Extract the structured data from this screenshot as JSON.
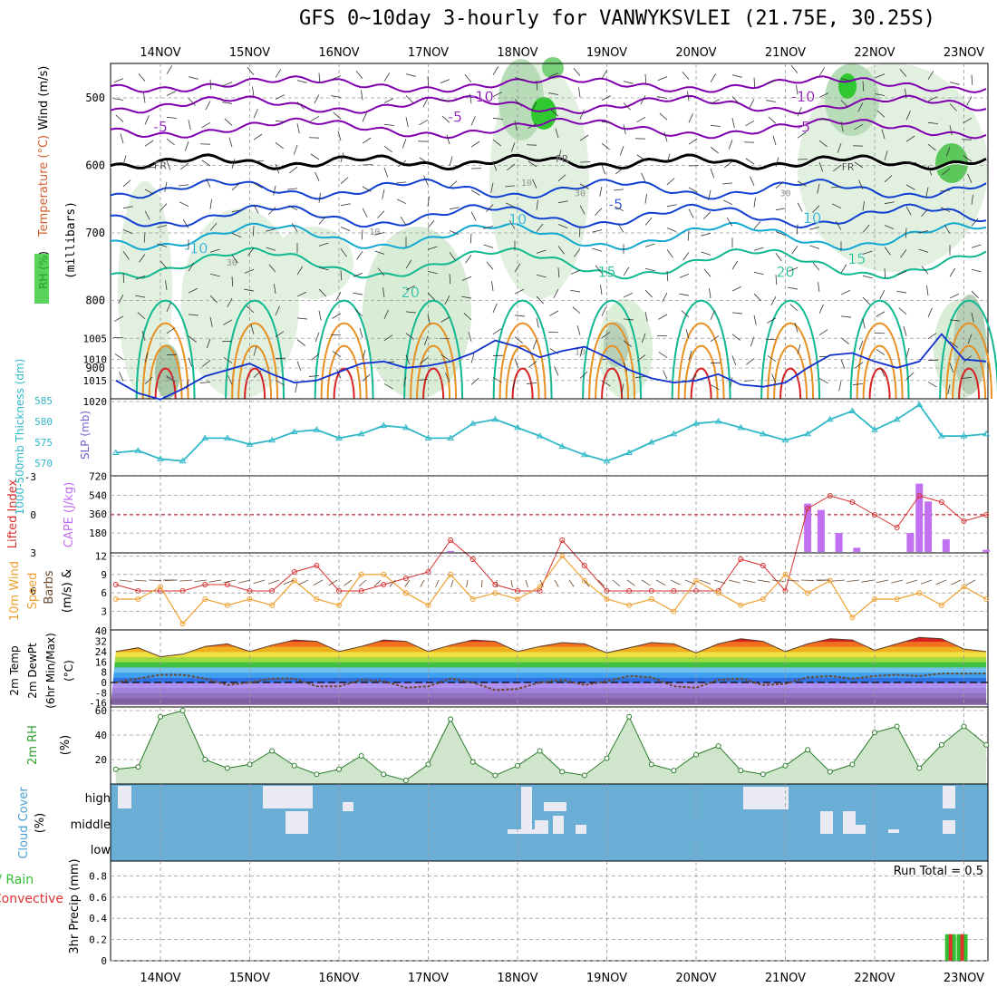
{
  "title": "GFS 0~10day 3-hourly for VANWYKSVLEI (21.75E, 30.25S)",
  "dates": [
    "14NOV",
    "15NOV",
    "16NOV",
    "17NOV",
    "18NOV",
    "19NOV",
    "20NOV",
    "21NOV",
    "22NOV",
    "23NOV"
  ],
  "colors": {
    "grid": "#9a9a9a",
    "rh_green": "#30c830",
    "temp_purple": "#8000b0",
    "temp_blue": "#1040d0",
    "temp_cyan": "#10a8d0",
    "temp_teal": "#10b890",
    "temp_orange": "#e89020",
    "temp_red": "#d82020",
    "slp": "#1030d0",
    "thickness": "#30b8c8",
    "lifted": "#d83030",
    "cape": "#c070f0",
    "wind10": "#f0a030",
    "rh2m": "#309030",
    "cloud": "#6aaed6",
    "precip_total": "#30c030",
    "precip_conv": "#e03030"
  },
  "chart_data": [
    {
      "panel": "upper-air",
      "type": "contour",
      "ylabel_parts": [
        "RH (%)",
        "Temperature (°C)",
        "Wind (m/s)",
        "(millibars)"
      ],
      "y_ticks": [
        500,
        600,
        700,
        800,
        900
      ],
      "ylim": [
        450,
        950
      ],
      "contour_labels": [
        {
          "text": "-10",
          "x": "17.6NOV",
          "p": 500,
          "color": "temp_purple"
        },
        {
          "text": "-10",
          "x": "21.2NOV",
          "p": 500,
          "color": "temp_purple"
        },
        {
          "text": "-5",
          "x": "17.3NOV",
          "p": 530,
          "color": "temp_purple"
        },
        {
          "text": "-5",
          "x": "14.0NOV",
          "p": 545,
          "color": "temp_purple"
        },
        {
          "text": "-5",
          "x": "21.2NOV",
          "p": 545,
          "color": "temp_purple"
        },
        {
          "text": "FR",
          "x": "14.0NOV",
          "p": 600,
          "color": "black"
        },
        {
          "text": "FR",
          "x": "18.5NOV",
          "p": 590,
          "color": "black"
        },
        {
          "text": "FR",
          "x": "21.7NOV",
          "p": 602,
          "color": "black"
        },
        {
          "text": "-5",
          "x": "19.1NOV",
          "p": 660,
          "color": "temp_blue"
        },
        {
          "text": "10",
          "x": "18.0NOV",
          "p": 682,
          "color": "temp_cyan"
        },
        {
          "text": "10",
          "x": "21.3NOV",
          "p": 680,
          "color": "temp_cyan"
        },
        {
          "text": "-10",
          "x": "14.4NOV",
          "p": 725,
          "color": "temp_cyan"
        },
        {
          "text": "20",
          "x": "16.8NOV",
          "p": 790,
          "color": "temp_teal"
        },
        {
          "text": "15",
          "x": "19.0NOV",
          "p": 760,
          "color": "temp_teal"
        },
        {
          "text": "20",
          "x": "21.0NOV",
          "p": 760,
          "color": "temp_teal"
        },
        {
          "text": "15",
          "x": "21.8NOV",
          "p": 740,
          "color": "temp_teal"
        }
      ],
      "gray_labels": [
        {
          "text": "10",
          "x": "18.1NOV",
          "p": 625
        },
        {
          "text": "30",
          "x": "18.7NOV",
          "p": 640
        },
        {
          "text": "10",
          "x": "16.4NOV",
          "p": 697
        },
        {
          "text": "30",
          "x": "21.0NOV",
          "p": 640
        },
        {
          "text": "30",
          "x": "14.8NOV",
          "p": 743
        },
        {
          "text": "10",
          "x": "18.7NOV",
          "p": 875
        },
        {
          "text": "30",
          "x": "14.1NOV",
          "p": 915
        }
      ]
    },
    {
      "panel": "slp-thickness",
      "type": "line",
      "ylabel_left": "1000-500mb Thickness (dm)",
      "ylabel_right": "SLP (mb)",
      "left_ticks": [
        570,
        575,
        580,
        585
      ],
      "right_ticks": [
        1005,
        1010,
        1015,
        1020
      ],
      "series": [
        {
          "name": "SLP (mb)",
          "color": "slp",
          "x": [
            13.5,
            13.75,
            14.0,
            14.25,
            14.5,
            14.75,
            15.0,
            15.25,
            15.5,
            15.75,
            16.0,
            16.25,
            16.5,
            16.75,
            17.0,
            17.25,
            17.5,
            17.75,
            18.0,
            18.25,
            18.5,
            18.75,
            19.0,
            19.25,
            19.5,
            19.75,
            20.0,
            20.25,
            20.5,
            20.75,
            21.0,
            21.25,
            21.5,
            21.75,
            22.0,
            22.25,
            22.5,
            22.75,
            23.0,
            23.25
          ],
          "values": [
            1015.0,
            1018.0,
            1019.5,
            1017.0,
            1014.0,
            1012.5,
            1011.0,
            1013.5,
            1015.5,
            1015.0,
            1013.0,
            1011.0,
            1010.5,
            1012.0,
            1011.5,
            1010.5,
            1008.5,
            1005.5,
            1007.0,
            1009.5,
            1008.0,
            1007.0,
            1009.5,
            1012.5,
            1014.5,
            1015.5,
            1015.0,
            1013.5,
            1016.0,
            1016.5,
            1015.5,
            1012.0,
            1009.0,
            1008.5,
            1010.5,
            1012.0,
            1010.5,
            1004.0,
            1010.0,
            1010.5
          ]
        },
        {
          "name": "Thickness (dm)",
          "color": "thickness",
          "x": [
            13.5,
            13.75,
            14.0,
            14.25,
            14.5,
            14.75,
            15.0,
            15.25,
            15.5,
            15.75,
            16.0,
            16.25,
            16.5,
            16.75,
            17.0,
            17.25,
            17.5,
            17.75,
            18.0,
            18.25,
            18.5,
            18.75,
            19.0,
            19.25,
            19.5,
            19.75,
            20.0,
            20.25,
            20.5,
            20.75,
            21.0,
            21.25,
            21.5,
            21.75,
            22.0,
            22.25,
            22.5,
            22.75,
            23.0,
            23.25
          ],
          "values": [
            572.5,
            573.0,
            571.0,
            570.5,
            576.0,
            576.0,
            574.5,
            575.5,
            577.5,
            578.0,
            576.0,
            577.0,
            579.0,
            578.5,
            576.0,
            576.0,
            579.5,
            580.5,
            578.5,
            576.5,
            574.0,
            572.0,
            570.5,
            572.5,
            575.0,
            577.0,
            579.5,
            580.0,
            578.5,
            577.0,
            575.5,
            577.0,
            580.5,
            582.5,
            578.0,
            580.5,
            584.0,
            576.5,
            576.5,
            577.0
          ]
        }
      ]
    },
    {
      "panel": "lifted-cape",
      "type": "bar",
      "ylabel_left": "Lifted Index",
      "ylabel_right": "CAPE (J/kg)",
      "left_ticks": [
        -3,
        0,
        3,
        6
      ],
      "right_ticks": [
        180,
        360,
        540,
        720
      ],
      "lifted_index": {
        "x": [
          13.5,
          13.75,
          14.0,
          14.25,
          14.5,
          14.75,
          15.0,
          15.25,
          15.5,
          15.75,
          16.0,
          16.25,
          16.5,
          16.75,
          17.0,
          17.25,
          17.5,
          17.75,
          18.0,
          18.25,
          18.5,
          18.75,
          19.0,
          19.25,
          19.5,
          19.75,
          20.0,
          20.25,
          20.5,
          20.75,
          21.0,
          21.25,
          21.5,
          21.75,
          22.0,
          22.25,
          22.5,
          22.75,
          23.0,
          23.25
        ],
        "values": [
          5.5,
          6.0,
          6.0,
          6.0,
          5.5,
          5.5,
          6.0,
          6.0,
          4.5,
          4.0,
          6.0,
          6.0,
          5.5,
          5.0,
          4.5,
          2.0,
          3.5,
          5.5,
          6.0,
          6.0,
          2.0,
          4.0,
          6.0,
          6.0,
          6.0,
          6.0,
          6.0,
          6.0,
          3.5,
          4.0,
          6.0,
          -0.5,
          -1.5,
          -1.0,
          0.0,
          1.0,
          -1.5,
          -1.0,
          0.5,
          0.0
        ]
      },
      "cape": {
        "x": [
          17.25,
          21.25,
          21.4,
          21.6,
          21.8,
          22.4,
          22.5,
          22.6,
          22.8,
          23.25
        ],
        "values": [
          10,
          460,
          400,
          180,
          40,
          180,
          650,
          480,
          120,
          20
        ]
      }
    },
    {
      "panel": "wind10m",
      "type": "line",
      "ylabel": "10m Wind Speed (m/s) & Barbs",
      "y_ticks": [
        3,
        6,
        9,
        12
      ],
      "series": [
        {
          "name": "Speed",
          "color": "wind10",
          "x": [
            13.5,
            13.75,
            14.0,
            14.25,
            14.5,
            14.75,
            15.0,
            15.25,
            15.5,
            15.75,
            16.0,
            16.25,
            16.5,
            16.75,
            17.0,
            17.25,
            17.5,
            17.75,
            18.0,
            18.25,
            18.5,
            18.75,
            19.0,
            19.25,
            19.5,
            19.75,
            20.0,
            20.25,
            20.5,
            20.75,
            21.0,
            21.25,
            21.5,
            21.75,
            22.0,
            22.25,
            22.5,
            22.75,
            23.0,
            23.25
          ],
          "values": [
            5,
            5,
            7,
            1,
            5,
            4,
            5,
            4,
            8,
            5,
            4,
            9,
            9,
            6,
            4,
            9,
            5,
            6,
            5,
            7,
            12,
            8,
            5,
            4,
            5,
            3,
            8,
            6,
            4,
            5,
            9,
            6,
            8,
            2,
            5,
            5,
            6,
            4,
            7,
            5
          ]
        }
      ]
    },
    {
      "panel": "temp2m",
      "type": "area",
      "ylabel": "2m Temp 2m DewPt (6hr Min/Max) (°C)",
      "y_ticks": [
        -16,
        -8,
        0,
        8,
        16,
        24,
        32,
        40
      ],
      "temp": {
        "x": [
          13.5,
          13.75,
          14.0,
          14.25,
          14.5,
          14.75,
          15.0,
          15.25,
          15.5,
          15.75,
          16.0,
          16.25,
          16.5,
          16.75,
          17.0,
          17.25,
          17.5,
          17.75,
          18.0,
          18.25,
          18.5,
          18.75,
          19.0,
          19.25,
          19.5,
          19.75,
          20.0,
          20.25,
          20.5,
          20.75,
          21.0,
          21.25,
          21.5,
          21.75,
          22.0,
          22.25,
          22.5,
          22.75,
          23.0,
          23.25
        ],
        "values": [
          24,
          27,
          20,
          22,
          28,
          30,
          24,
          29,
          33,
          32,
          24,
          28,
          33,
          32,
          24,
          29,
          33,
          32,
          24,
          28,
          31,
          30,
          23,
          27,
          31,
          30,
          23,
          30,
          34,
          32,
          24,
          30,
          34,
          33,
          25,
          30,
          35,
          34,
          26,
          24
        ]
      },
      "dewpt": {
        "x": [
          13.5,
          13.75,
          14.0,
          14.25,
          14.5,
          14.75,
          15.0,
          15.25,
          15.5,
          15.75,
          16.0,
          16.25,
          16.5,
          16.75,
          17.0,
          17.25,
          17.5,
          17.75,
          18.0,
          18.25,
          18.5,
          18.75,
          19.0,
          19.25,
          19.5,
          19.75,
          20.0,
          20.25,
          20.5,
          20.75,
          21.0,
          21.25,
          21.5,
          21.75,
          22.0,
          22.25,
          22.5,
          22.75,
          23.0,
          23.25
        ],
        "values": [
          0,
          3,
          6,
          6,
          3,
          -2,
          0,
          3,
          3,
          -3,
          -3,
          2,
          1,
          -4,
          -3,
          3,
          0,
          -6,
          -5,
          0,
          2,
          -2,
          1,
          5,
          4,
          -3,
          -4,
          2,
          3,
          -2,
          -1,
          4,
          5,
          3,
          5,
          6,
          5,
          7,
          7,
          7
        ]
      }
    },
    {
      "panel": "rh2m",
      "type": "area",
      "ylabel": "2m RH (%)",
      "y_ticks": [
        20,
        40,
        60
      ],
      "series": [
        {
          "name": "2m RH",
          "color": "rh2m",
          "x": [
            13.5,
            13.75,
            14.0,
            14.25,
            14.5,
            14.75,
            15.0,
            15.25,
            15.5,
            15.75,
            16.0,
            16.25,
            16.5,
            16.75,
            17.0,
            17.25,
            17.5,
            17.75,
            18.0,
            18.25,
            18.5,
            18.75,
            19.0,
            19.25,
            19.5,
            19.75,
            20.0,
            20.25,
            20.5,
            20.75,
            21.0,
            21.25,
            21.5,
            21.75,
            22.0,
            22.25,
            22.5,
            22.75,
            23.0,
            23.25
          ],
          "values": [
            12,
            14,
            55,
            60,
            20,
            13,
            16,
            27,
            15,
            8,
            12,
            23,
            8,
            3,
            16,
            53,
            18,
            7,
            15,
            27,
            10,
            7,
            21,
            55,
            16,
            11,
            24,
            31,
            11,
            8,
            15,
            28,
            10,
            16,
            42,
            47,
            13,
            32,
            47,
            32
          ]
        }
      ]
    },
    {
      "panel": "cloud",
      "type": "heatmap",
      "ylabel": "Cloud Cover (%)",
      "levels": [
        "high",
        "middle",
        "low"
      ]
    },
    {
      "panel": "precip",
      "type": "bar",
      "ylabel_left": "Total / Rain",
      "ylabel_left2": "Convective",
      "ylabel": "3hr Precip (mm)",
      "y_ticks": [
        0,
        0.2,
        0.4,
        0.6,
        0.8
      ],
      "run_total": "Run Total = 0.5",
      "bars": [
        {
          "x": 22.85,
          "total": 0.25,
          "conv": 0.25
        },
        {
          "x": 22.98,
          "total": 0.25,
          "conv": 0.25
        }
      ]
    }
  ]
}
